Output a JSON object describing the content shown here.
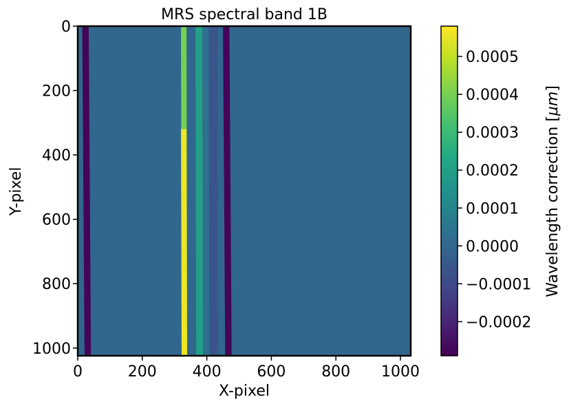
{
  "chart_data": {
    "type": "heatmap",
    "title": "MRS spectral band 1B",
    "xlabel": "X-pixel",
    "ylabel": "Y-pixel",
    "colorbar_label": "Wavelength correction [μm]",
    "colorbar_label_parts": [
      "Wavelength correction [",
      "μm",
      "]"
    ],
    "xlim": [
      0,
      1032
    ],
    "ylim": [
      1024,
      0
    ],
    "x_ticks": [
      0,
      200,
      400,
      600,
      800,
      1000
    ],
    "y_ticks": [
      0,
      200,
      400,
      600,
      800,
      1000
    ],
    "x_tick_labels": [
      "0",
      "200",
      "400",
      "600",
      "800",
      "1000"
    ],
    "y_tick_labels": [
      "0",
      "200",
      "400",
      "600",
      "800",
      "1000"
    ],
    "colorbar_range": [
      -0.00029,
      0.00058
    ],
    "colorbar_ticks": [
      0.0005,
      0.0004,
      0.0003,
      0.0002,
      0.0001,
      0.0,
      -0.0001,
      -0.0002
    ],
    "colorbar_tick_labels": [
      "0.0005",
      "0.0004",
      "0.0003",
      "0.0002",
      "0.0001",
      "0.0000",
      "−0.0001",
      "−0.0002"
    ],
    "colormap": "viridis",
    "background_value": 0.0,
    "bands": [
      {
        "x_start_top": 14,
        "x_end_top": 34,
        "x_start_bottom": 21,
        "x_end_bottom": 41,
        "value": -0.00028
      },
      {
        "x_start_top": 320,
        "x_end_top": 337,
        "x_start_bottom": 322,
        "x_end_bottom": 339,
        "value": 0.0004
      },
      {
        "x_start_top": 320,
        "x_end_top": 337,
        "x_start_bottom": 322,
        "x_end_bottom": 339,
        "value": 0.00056,
        "y_start": 320
      },
      {
        "x_start_top": 365,
        "x_end_top": 386,
        "x_start_bottom": 367,
        "x_end_bottom": 388,
        "value": 0.0002
      },
      {
        "x_start_top": 386,
        "x_end_top": 406,
        "x_start_bottom": 388,
        "x_end_bottom": 408,
        "value": 3e-05
      },
      {
        "x_start_top": 406,
        "x_end_top": 433,
        "x_start_bottom": 408,
        "x_end_bottom": 435,
        "value": -6e-05
      },
      {
        "x_start_top": 450,
        "x_end_top": 470,
        "x_start_bottom": 457,
        "x_end_bottom": 477,
        "value": -0.00028
      }
    ]
  }
}
